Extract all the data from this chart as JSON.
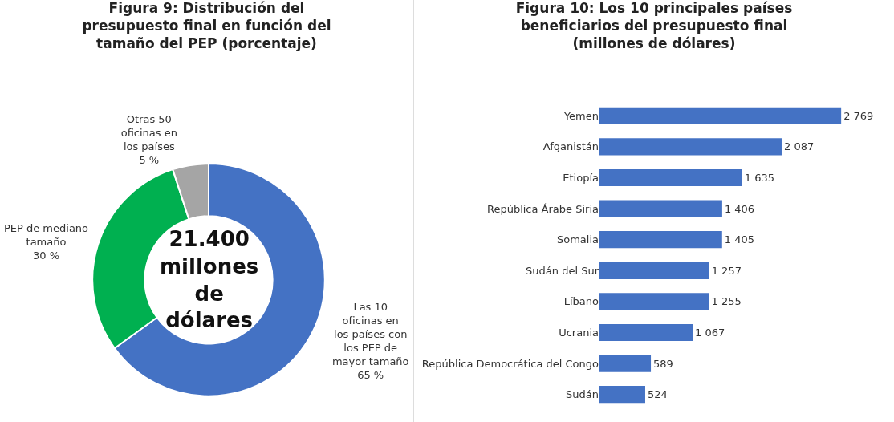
{
  "chart_data": [
    {
      "type": "donut",
      "title": "Figura 9: Distribución del presupuesto final en función del tamaño del PEP (porcentaje)",
      "categories": [
        "Las 10 oficinas en los países con los PEP de mayor tamaño",
        "PEP de mediano tamaño",
        "Otras 50 oficinas en los países"
      ],
      "values": [
        65,
        30,
        5
      ],
      "value_labels": [
        "65 %",
        "30 %",
        "5 %"
      ],
      "colors": [
        "#4472c4",
        "#00b050",
        "#a5a5a5"
      ],
      "annotations": [
        "21.400 millones de dólares"
      ]
    },
    {
      "type": "bar",
      "orientation": "horizontal",
      "title": "Figura 10: Los 10 principales países beneficiarios del presupuesto final (millones de dólares)",
      "categories": [
        "Yemen",
        "Afganistán",
        "Etiopía",
        "República Árabe Siria",
        "Somalia",
        "Sudán del Sur",
        "Líbano",
        "Ucrania",
        "República Democrática del Congo",
        "Sudán"
      ],
      "values": [
        2769,
        2087,
        1635,
        1406,
        1405,
        1257,
        1255,
        1067,
        589,
        524
      ],
      "value_labels": [
        "2 769",
        "2 087",
        "1 635",
        "1 406",
        "1 405",
        "1 257",
        "1 255",
        "1 067",
        "589",
        "524"
      ],
      "color": "#4472c4",
      "tick_labels": "y"
    }
  ]
}
